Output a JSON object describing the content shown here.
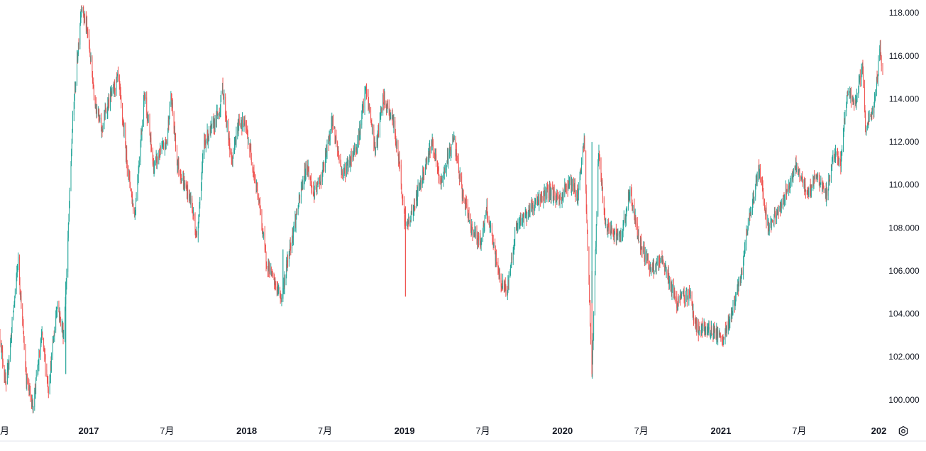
{
  "chart_data": {
    "type": "candlestick",
    "y_axis": {
      "position": "right",
      "range": [
        99.4,
        118.6
      ],
      "tick_labels": [
        "100.000",
        "102.000",
        "104.000",
        "106.000",
        "108.000",
        "110.000",
        "112.000",
        "114.000",
        "116.000",
        "118.000"
      ],
      "tick_values": [
        100,
        102,
        104,
        106,
        108,
        110,
        112,
        114,
        116,
        118
      ]
    },
    "x_axis": {
      "range": [
        "2016-06-10",
        "2022-01-10"
      ],
      "ticks": [
        {
          "label": "月",
          "date": "2016-06-01",
          "year": false
        },
        {
          "label": "2017",
          "date": "2017-01-01",
          "year": true
        },
        {
          "label": "7月",
          "date": "2017-07-01",
          "year": false
        },
        {
          "label": "2018",
          "date": "2018-01-01",
          "year": true
        },
        {
          "label": "7月",
          "date": "2018-07-01",
          "year": false
        },
        {
          "label": "2019",
          "date": "2019-01-01",
          "year": true
        },
        {
          "label": "7月",
          "date": "2019-07-01",
          "year": false
        },
        {
          "label": "2020",
          "date": "2020-01-01",
          "year": true
        },
        {
          "label": "7月",
          "date": "2020-07-01",
          "year": false
        },
        {
          "label": "2021",
          "date": "2021-01-01",
          "year": true
        },
        {
          "label": "7月",
          "date": "2021-07-01",
          "year": false
        },
        {
          "label": "202",
          "date": "2022-01-01",
          "year": true
        }
      ]
    },
    "price_path": [
      [
        "2016-06-10",
        103.0
      ],
      [
        "2016-06-24",
        100.5
      ],
      [
        "2016-07-22",
        106.5
      ],
      [
        "2016-08-10",
        101.0
      ],
      [
        "2016-08-25",
        99.7
      ],
      [
        "2016-09-15",
        103.0
      ],
      [
        "2016-09-30",
        100.5
      ],
      [
        "2016-10-20",
        104.5
      ],
      [
        "2016-11-04",
        103.0
      ],
      [
        "2016-11-10",
        105.5
      ],
      [
        "2016-11-25",
        113.0
      ],
      [
        "2016-12-15",
        118.4
      ],
      [
        "2016-12-30",
        117.0
      ],
      [
        "2017-01-15",
        114.0
      ],
      [
        "2017-01-31",
        112.5
      ],
      [
        "2017-02-10",
        113.5
      ],
      [
        "2017-03-10",
        115.0
      ],
      [
        "2017-03-31",
        111.0
      ],
      [
        "2017-04-17",
        108.5
      ],
      [
        "2017-05-10",
        114.3
      ],
      [
        "2017-05-31",
        110.8
      ],
      [
        "2017-06-15",
        111.5
      ],
      [
        "2017-06-30",
        112.0
      ],
      [
        "2017-07-10",
        114.2
      ],
      [
        "2017-07-25",
        111.0
      ],
      [
        "2017-08-10",
        110.0
      ],
      [
        "2017-08-25",
        109.3
      ],
      [
        "2017-09-08",
        107.5
      ],
      [
        "2017-09-25",
        112.0
      ],
      [
        "2017-10-10",
        112.5
      ],
      [
        "2017-10-31",
        113.5
      ],
      [
        "2017-11-06",
        114.6
      ],
      [
        "2017-11-27",
        111.0
      ],
      [
        "2017-12-15",
        113.0
      ],
      [
        "2017-12-29",
        112.7
      ],
      [
        "2018-01-10",
        111.5
      ],
      [
        "2018-01-31",
        109.0
      ],
      [
        "2018-02-15",
        106.5
      ],
      [
        "2018-03-05",
        105.5
      ],
      [
        "2018-03-23",
        104.7
      ],
      [
        "2018-04-10",
        107.0
      ],
      [
        "2018-05-20",
        111.0
      ],
      [
        "2018-06-05",
        109.5
      ],
      [
        "2018-06-25",
        110.5
      ],
      [
        "2018-07-18",
        113.0
      ],
      [
        "2018-08-10",
        110.5
      ],
      [
        "2018-08-25",
        111.0
      ],
      [
        "2018-09-15",
        112.0
      ],
      [
        "2018-10-04",
        114.5
      ],
      [
        "2018-10-26",
        111.5
      ],
      [
        "2018-11-12",
        114.0
      ],
      [
        "2018-12-05",
        113.0
      ],
      [
        "2018-12-20",
        111.0
      ],
      [
        "2019-01-03",
        108.0
      ],
      [
        "2019-01-15",
        108.5
      ],
      [
        "2019-02-05",
        110.0
      ],
      [
        "2019-03-05",
        112.0
      ],
      [
        "2019-03-25",
        110.0
      ],
      [
        "2019-04-24",
        112.2
      ],
      [
        "2019-05-15",
        109.5
      ],
      [
        "2019-06-05",
        108.0
      ],
      [
        "2019-06-25",
        107.3
      ],
      [
        "2019-07-10",
        108.8
      ],
      [
        "2019-08-10",
        105.5
      ],
      [
        "2019-08-26",
        105.0
      ],
      [
        "2019-09-15",
        108.0
      ],
      [
        "2019-10-15",
        108.8
      ],
      [
        "2019-11-05",
        109.3
      ],
      [
        "2019-12-02",
        109.7
      ],
      [
        "2019-12-25",
        109.3
      ],
      [
        "2020-01-17",
        110.2
      ],
      [
        "2020-02-05",
        109.5
      ],
      [
        "2020-02-20",
        112.0
      ],
      [
        "2020-03-09",
        101.2
      ],
      [
        "2020-03-24",
        111.5
      ],
      [
        "2020-04-10",
        108.0
      ],
      [
        "2020-05-15",
        107.5
      ],
      [
        "2020-06-05",
        109.7
      ],
      [
        "2020-06-25",
        107.5
      ],
      [
        "2020-07-25",
        106.0
      ],
      [
        "2020-08-20",
        106.5
      ],
      [
        "2020-09-20",
        104.5
      ],
      [
        "2020-10-20",
        105.0
      ],
      [
        "2020-11-06",
        103.3
      ],
      [
        "2020-12-15",
        103.2
      ],
      [
        "2021-01-06",
        102.7
      ],
      [
        "2021-01-25",
        104.0
      ],
      [
        "2021-02-15",
        105.5
      ],
      [
        "2021-03-10",
        108.8
      ],
      [
        "2021-03-31",
        110.8
      ],
      [
        "2021-04-20",
        108.0
      ],
      [
        "2021-05-20",
        109.0
      ],
      [
        "2021-06-25",
        111.0
      ],
      [
        "2021-07-20",
        109.5
      ],
      [
        "2021-08-10",
        110.5
      ],
      [
        "2021-09-01",
        109.5
      ],
      [
        "2021-09-20",
        111.5
      ],
      [
        "2021-10-05",
        111.0
      ],
      [
        "2021-10-20",
        114.5
      ],
      [
        "2021-11-05",
        113.5
      ],
      [
        "2021-11-24",
        115.5
      ],
      [
        "2021-12-02",
        112.6
      ],
      [
        "2021-12-20",
        113.5
      ],
      [
        "2022-01-04",
        116.3
      ],
      [
        "2022-01-07",
        115.6
      ]
    ],
    "colors": {
      "up": "#26a69a",
      "down": "#ef5350",
      "axis_text": "#131722",
      "axis_line": "#e0e3eb"
    },
    "grid": false,
    "legend": "none"
  },
  "ui": {
    "settings_icon": "gear-icon"
  }
}
